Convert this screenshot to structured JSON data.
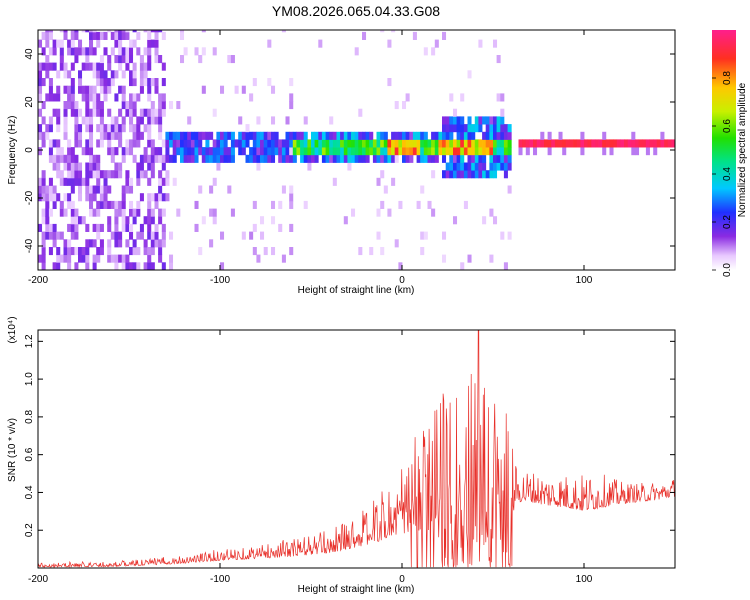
{
  "title": "YM08.2026.065.04.33.G08",
  "chart_data": [
    {
      "type": "heatmap",
      "xlabel": "Height of straight line (km)",
      "ylabel": "Frequency (Hz)",
      "xlim": [
        -200,
        150
      ],
      "ylim": [
        -50,
        50
      ],
      "xticks": [
        -200,
        -100,
        0,
        100
      ],
      "xtick_labels": [
        "-200",
        "-100",
        "0",
        "100"
      ],
      "yticks": [
        -40,
        -20,
        0,
        20,
        40
      ],
      "ytick_labels": [
        "-40",
        "-20",
        "0",
        "20",
        "40"
      ],
      "colorbar": {
        "label": "Normalized spectral amplitude",
        "range": [
          0,
          1
        ],
        "ticks": [
          0.0,
          0.2,
          0.4,
          0.6,
          0.8
        ],
        "tick_labels": [
          "0.0",
          "0.2",
          "0.4",
          "0.6",
          "0.8"
        ]
      },
      "features": [
        {
          "from_km": -200,
          "to_km": -130,
          "description": "broadband scatter across all frequencies",
          "amplitude": 0.1
        },
        {
          "from_km": -130,
          "to_km": -60,
          "description": "band around 0 Hz, half width ~6 Hz",
          "amplitude": 0.25
        },
        {
          "from_km": -60,
          "to_km": 60,
          "description": "band around 0 Hz, peaks near 0 km and 20-50 km",
          "amplitude": 0.55
        },
        {
          "from_km": 62,
          "to_km": 150,
          "description": "narrow line at ~0.5 Hz",
          "amplitude": 0.95
        }
      ]
    },
    {
      "type": "line",
      "xlabel": "Height of straight line (km)",
      "ylabel": "SNR (10 * v/v)",
      "y_multiplier": "(x10⁴)",
      "xlim": [
        -200,
        150
      ],
      "ylim": [
        0,
        1.26
      ],
      "xticks": [
        -200,
        -100,
        0,
        100
      ],
      "xtick_labels": [
        "-200",
        "-100",
        "0",
        "100"
      ],
      "yticks": [
        0.2,
        0.4,
        0.6,
        0.8,
        1.0,
        1.2
      ],
      "ytick_labels": [
        "0.2",
        "0.4",
        "0.6",
        "0.8",
        "1.0",
        "1.2"
      ],
      "color": "#e8302a",
      "envelope": {
        "x": [
          -200,
          -160,
          -140,
          -120,
          -100,
          -80,
          -60,
          -40,
          -20,
          -10,
          0,
          10,
          20,
          30,
          40,
          50,
          60,
          62,
          70,
          80,
          90,
          100,
          110,
          120,
          130,
          140,
          150
        ],
        "base": [
          0.005,
          0.008,
          0.015,
          0.025,
          0.04,
          0.05,
          0.06,
          0.08,
          0.12,
          0.15,
          0.18,
          0.2,
          0.2,
          0.22,
          0.2,
          0.18,
          0.15,
          0.35,
          0.35,
          0.33,
          0.32,
          0.3,
          0.32,
          0.34,
          0.35,
          0.36,
          0.38
        ],
        "peak": [
          0.03,
          0.035,
          0.05,
          0.07,
          0.1,
          0.12,
          0.16,
          0.2,
          0.32,
          0.42,
          0.55,
          0.75,
          0.9,
          1.0,
          1.26,
          1.0,
          0.85,
          0.55,
          0.52,
          0.5,
          0.5,
          0.5,
          0.5,
          0.46,
          0.45,
          0.46,
          0.48
        ]
      }
    }
  ]
}
